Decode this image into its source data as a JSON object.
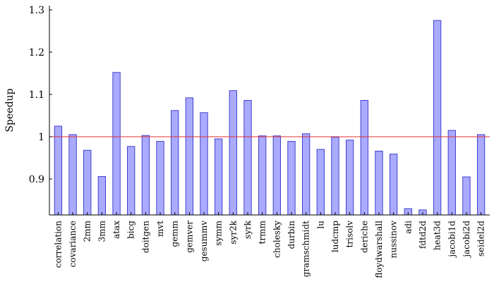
{
  "chart_data": {
    "type": "bar",
    "title": "",
    "xlabel": "",
    "ylabel": "Speedup",
    "ylim": [
      0.815,
      1.31
    ],
    "yticks": [
      0.9,
      1,
      1.1,
      1.2,
      1.3
    ],
    "ytick_labels": [
      "0.9",
      "1",
      "1.1",
      "1.2",
      "1.3"
    ],
    "grid": false,
    "legend": "none",
    "reference_line": 1.0,
    "categories": [
      "correlation",
      "covariance",
      "2mm",
      "3mm",
      "atax",
      "bicg",
      "doitgen",
      "mvt",
      "gemm",
      "gemver",
      "gesummv",
      "symm",
      "syr2k",
      "syrk",
      "trmm",
      "cholesky",
      "durbin",
      "gramschmidt",
      "lu",
      "ludcmp",
      "trisolv",
      "deriche",
      "floydwarshall",
      "nussinov",
      "adi",
      "fdtd2d",
      "heat3d",
      "jacobi1d",
      "jacobi2d",
      "seidel2d"
    ],
    "series": [
      {
        "values": [
          1.025,
          1.005,
          0.968,
          0.906,
          1.152,
          0.977,
          1.003,
          0.989,
          1.062,
          1.092,
          1.057,
          0.995,
          1.109,
          1.086,
          1.002,
          1.002,
          0.989,
          1.007,
          0.97,
          0.999,
          0.992,
          1.086,
          0.966,
          0.959,
          0.83,
          0.827,
          1.275,
          1.015,
          0.905,
          1.005
        ]
      }
    ],
    "colors": {
      "bar_fill": "#aaaaff",
      "bar_stroke": "#3333cc",
      "reference_line": "#e03030",
      "axis": "#000000"
    }
  }
}
